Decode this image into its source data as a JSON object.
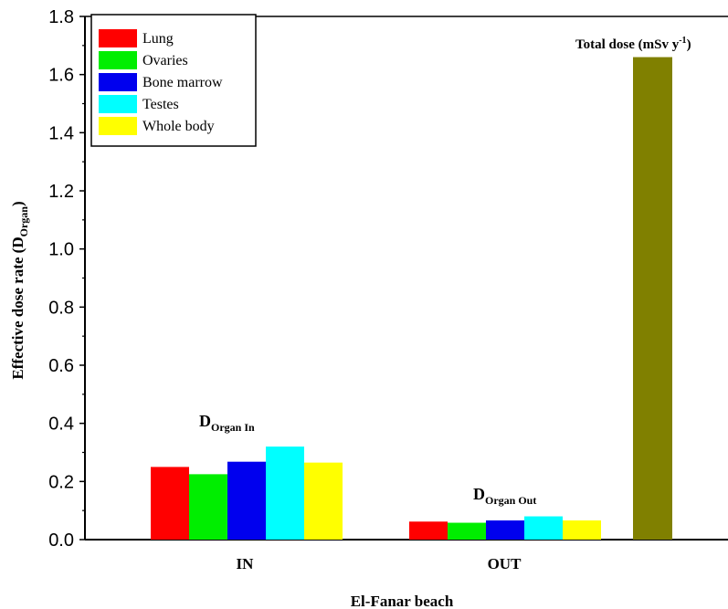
{
  "chart_data": {
    "type": "bar",
    "xlabel": "El-Fanar beach",
    "ylabel": "Effective dose rate (D",
    "ylabel_sub": "Organ",
    "ylabel_close": ")",
    "ylim": [
      0,
      1.8
    ],
    "yticks": [
      "0.0",
      "0.2",
      "0.4",
      "0.6",
      "0.8",
      "1.0",
      "1.2",
      "1.4",
      "1.6",
      "1.8"
    ],
    "groups": [
      {
        "label": "IN",
        "annotation": {
          "main": "D",
          "sub": "Organ In"
        },
        "values": [
          0.25,
          0.225,
          0.268,
          0.32,
          0.265
        ]
      },
      {
        "label": "OUT",
        "annotation": {
          "main": "D",
          "sub": "Organ Out"
        },
        "values": [
          0.062,
          0.058,
          0.066,
          0.08,
          0.066
        ]
      }
    ],
    "series": [
      {
        "name": "Lung",
        "color": "#ff0000"
      },
      {
        "name": "Ovaries",
        "color": "#00ee00"
      },
      {
        "name": "Bone marrow",
        "color": "#0000ee"
      },
      {
        "name": "Testes",
        "color": "#00ffff"
      },
      {
        "name": "Whole body",
        "color": "#ffff00"
      }
    ],
    "total_bar": {
      "value": 1.66,
      "color": "#808000",
      "label_main": "Total dose (mSv y",
      "label_sup": "-1",
      "label_close": ")"
    },
    "legend_position": "top-left",
    "grid": false
  }
}
